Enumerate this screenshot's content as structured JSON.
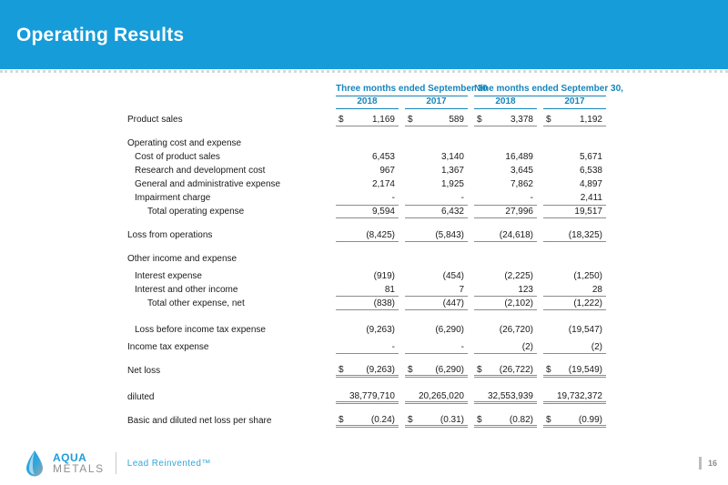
{
  "slide": {
    "title": "Operating Results",
    "page_number": "16"
  },
  "footer": {
    "logo_icon": "droplet-icon",
    "logo_line1": "AQUA",
    "logo_line2": "METALS",
    "tagline": "Lead Reinvented™"
  },
  "colors": {
    "band_blue": "#169CD8",
    "table_header_blue": "#1685BB",
    "rule_gray": "#8c8c8c",
    "logo_blue": "#1E9CD8",
    "logo_gray": "#8D9091"
  },
  "table": {
    "currency_symbol": "$",
    "groups": [
      {
        "label": "Three months ended September 30",
        "years": [
          "2018",
          "2017"
        ]
      },
      {
        "label": "Nine months ended September 30,",
        "years": [
          "2018",
          "2017"
        ]
      }
    ],
    "rows": [
      {
        "label": "Product sales",
        "indent": 0,
        "dollar": true,
        "values": [
          "1,169",
          "589",
          "3,378",
          "1,192"
        ],
        "border_bottom": "single",
        "gap_before": "xs"
      },
      {
        "label": "Operating cost and expense",
        "indent": 0,
        "values": null,
        "gap_before": "md"
      },
      {
        "label": "Cost of product sales",
        "indent": 1,
        "values": [
          "6,453",
          "3,140",
          "16,489",
          "5,671"
        ]
      },
      {
        "label": "Research and development cost",
        "indent": 1,
        "values": [
          "967",
          "1,367",
          "3,645",
          "6,538"
        ]
      },
      {
        "label": "General and administrative expense",
        "indent": 1,
        "values": [
          "2,174",
          "1,925",
          "7,862",
          "4,897"
        ]
      },
      {
        "label": "Impairment charge",
        "indent": 1,
        "values": [
          "-",
          "-",
          "-",
          "2,411"
        ]
      },
      {
        "label": "Total operating expense",
        "indent": 2,
        "values": [
          "9,594",
          "6,432",
          "27,996",
          "19,517"
        ],
        "border_top": true,
        "border_bottom": "single"
      },
      {
        "label": "Loss from operations",
        "indent": 0,
        "values": [
          "(8,425)",
          "(5,843)",
          "(24,618)",
          "(18,325)"
        ],
        "border_bottom": "single",
        "gap_before": "md"
      },
      {
        "label": "Other income and expense",
        "indent": 0,
        "values": null,
        "gap_before": "md"
      },
      {
        "label": "Interest expense",
        "indent": 1,
        "values": [
          "(919)",
          "(454)",
          "(2,225)",
          "(1,250)"
        ],
        "gap_before": "xs"
      },
      {
        "label": "Interest and other income",
        "indent": 1,
        "values": [
          "81",
          "7",
          "123",
          "28"
        ],
        "border_bottom": "single"
      },
      {
        "label": "Total other expense, net",
        "indent": 2,
        "values": [
          "(838)",
          "(447)",
          "(2,102)",
          "(1,222)"
        ],
        "border_bottom": "single"
      },
      {
        "label": "Loss before income tax expense",
        "indent": 1,
        "values": [
          "(9,263)",
          "(6,290)",
          "(26,720)",
          "(19,547)"
        ],
        "gap_before": "lg"
      },
      {
        "label": "Income tax expense",
        "indent": 0,
        "values": [
          "-",
          "-",
          "(2)",
          "(2)"
        ],
        "border_bottom": "single",
        "gap_before": "xs"
      },
      {
        "label": "Net loss",
        "indent": 0,
        "dollar": true,
        "values": [
          "(9,263)",
          "(6,290)",
          "(26,722)",
          "(19,549)"
        ],
        "border_bottom": "double",
        "gap_before": "md"
      },
      {
        "label": "diluted",
        "indent": 0,
        "values": [
          "38,779,710",
          "20,265,020",
          "32,553,939",
          "19,732,372"
        ],
        "border_bottom": "double",
        "gap_before": "lg"
      },
      {
        "label": "Basic and diluted net loss per share",
        "indent": 0,
        "dollar": true,
        "values": [
          "(0.24)",
          "(0.31)",
          "(0.82)",
          "(0.99)"
        ],
        "border_bottom": "double",
        "gap_before": "md"
      }
    ]
  }
}
